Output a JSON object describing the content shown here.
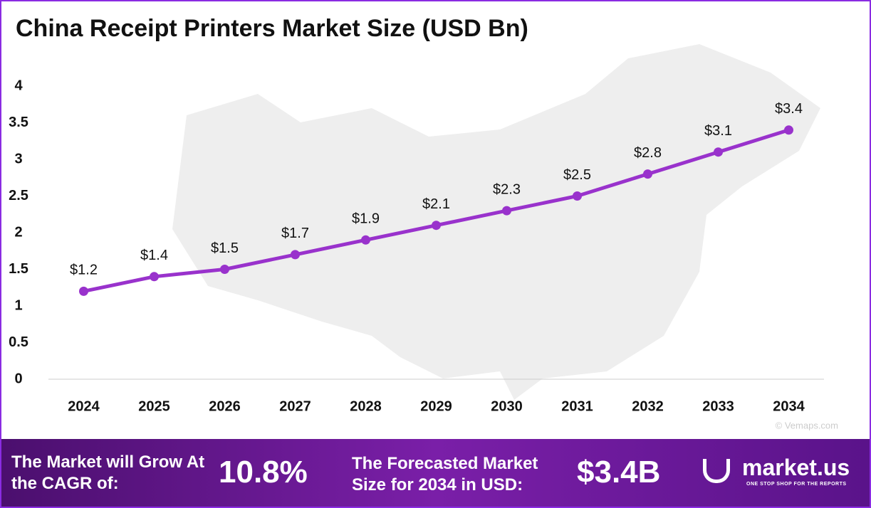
{
  "chart_data": {
    "type": "line",
    "title": "China Receipt Printers Market Size (USD Bn)",
    "categories": [
      "2024",
      "2025",
      "2026",
      "2027",
      "2028",
      "2029",
      "2030",
      "2031",
      "2032",
      "2033",
      "2034"
    ],
    "series": [
      {
        "name": "Market Size",
        "color": "#9932cc",
        "values": [
          1.2,
          1.4,
          1.5,
          1.7,
          1.9,
          2.1,
          2.3,
          2.5,
          2.8,
          3.1,
          3.4
        ],
        "value_labels": [
          "$1.2",
          "$1.4",
          "$1.5",
          "$1.7",
          "$1.9",
          "$2.1",
          "$2.3",
          "$2.5",
          "$2.8",
          "$3.1",
          "$3.4"
        ]
      }
    ],
    "ylim": [
      0,
      4
    ],
    "yticks": [
      0,
      0.5,
      1,
      1.5,
      2,
      2.5,
      3,
      3.5,
      4
    ],
    "grid": false,
    "watermark": "© Vemaps.com"
  },
  "footer": {
    "cagr_label": "The Market will Grow At the CAGR of:",
    "cagr_value": "10.8%",
    "forecast_label": "The Forecasted Market Size for 2034 in USD:",
    "forecast_value": "$3.4B",
    "brand": "market.us",
    "tagline": "ONE STOP SHOP FOR THE REPORTS"
  }
}
